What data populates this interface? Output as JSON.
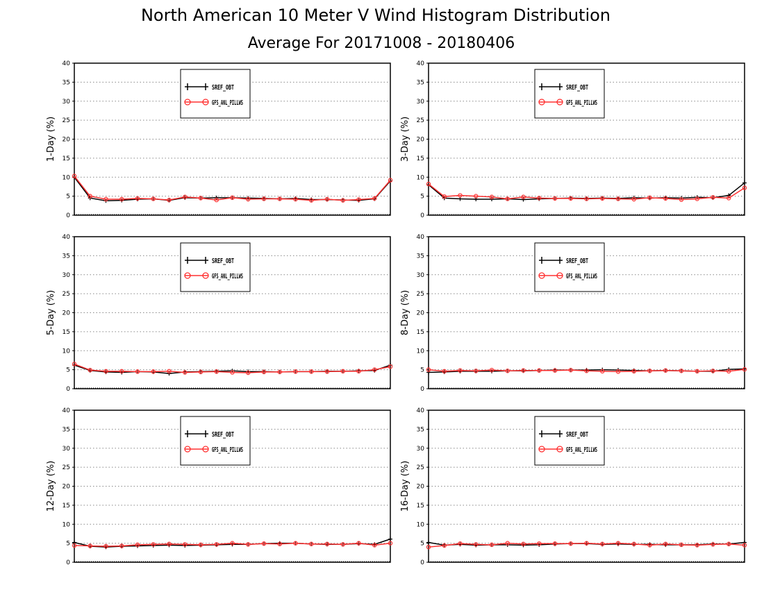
{
  "title": "North American 10 Meter V Wind Histogram Distribution",
  "subtitle": "Average For 20171008 - 20180406",
  "colors": {
    "series1": "#000000",
    "series2": "#ff3030",
    "grid": "#888888"
  },
  "legend_labels": [
    "SREF_OBT",
    "GFS_ANL_PILLWS"
  ],
  "chart_data": [
    {
      "type": "line",
      "ylabel": "1-Day (%)",
      "ylim": [
        0,
        40
      ],
      "yticks": [
        0,
        5,
        10,
        15,
        20,
        25,
        30,
        35,
        40
      ],
      "grid": true,
      "legend_position": "top-center",
      "x": [
        0,
        1,
        2,
        3,
        4,
        5,
        6,
        7,
        8,
        9,
        10,
        11,
        12,
        13,
        14,
        15,
        16,
        17,
        18,
        19,
        20
      ],
      "series": [
        {
          "values": [
            10.0,
            4.5,
            3.8,
            3.9,
            4.2,
            4.3,
            3.9,
            4.6,
            4.5,
            4.6,
            4.6,
            4.5,
            4.4,
            4.3,
            4.4,
            4.1,
            4.1,
            4.0,
            3.9,
            4.3,
            9.0
          ]
        },
        {
          "values": [
            10.3,
            5.0,
            4.2,
            4.2,
            4.4,
            4.3,
            4.0,
            4.8,
            4.5,
            4.0,
            4.6,
            4.2,
            4.3,
            4.3,
            4.2,
            3.9,
            4.2,
            3.9,
            4.1,
            4.4,
            9.2
          ]
        }
      ]
    },
    {
      "type": "line",
      "ylabel": "3-Day (%)",
      "ylim": [
        0,
        40
      ],
      "yticks": [
        0,
        5,
        10,
        15,
        20,
        25,
        30,
        35,
        40
      ],
      "grid": true,
      "legend_position": "top-center",
      "x": [
        0,
        1,
        2,
        3,
        4,
        5,
        6,
        7,
        8,
        9,
        10,
        11,
        12,
        13,
        14,
        15,
        16,
        17,
        18,
        19,
        20
      ],
      "series": [
        {
          "values": [
            8.0,
            4.5,
            4.3,
            4.2,
            4.2,
            4.3,
            4.1,
            4.3,
            4.4,
            4.5,
            4.4,
            4.5,
            4.4,
            4.6,
            4.5,
            4.6,
            4.5,
            4.7,
            4.6,
            5.2,
            8.5
          ]
        },
        {
          "values": [
            8.2,
            4.9,
            5.2,
            5.0,
            4.8,
            4.3,
            4.8,
            4.5,
            4.4,
            4.4,
            4.3,
            4.4,
            4.3,
            4.2,
            4.6,
            4.4,
            4.1,
            4.3,
            4.7,
            4.5,
            7.2
          ]
        }
      ]
    },
    {
      "type": "line",
      "ylabel": "5-Day (%)",
      "ylim": [
        0,
        40
      ],
      "yticks": [
        0,
        5,
        10,
        15,
        20,
        25,
        30,
        35,
        40
      ],
      "grid": true,
      "legend_position": "top-center",
      "x": [
        0,
        1,
        2,
        3,
        4,
        5,
        6,
        7,
        8,
        9,
        10,
        11,
        12,
        13,
        14,
        15,
        16,
        17,
        18,
        19,
        20
      ],
      "series": [
        {
          "values": [
            6.2,
            4.8,
            4.4,
            4.3,
            4.5,
            4.4,
            4.0,
            4.4,
            4.5,
            4.6,
            4.7,
            4.5,
            4.5,
            4.4,
            4.5,
            4.5,
            4.6,
            4.6,
            4.7,
            4.8,
            6.2
          ]
        },
        {
          "values": [
            6.5,
            4.9,
            4.6,
            4.6,
            4.5,
            4.5,
            4.6,
            4.3,
            4.4,
            4.5,
            4.3,
            4.2,
            4.4,
            4.4,
            4.5,
            4.5,
            4.5,
            4.6,
            4.6,
            5.0,
            5.8
          ]
        }
      ]
    },
    {
      "type": "line",
      "ylabel": "8-Day (%)",
      "ylim": [
        0,
        40
      ],
      "yticks": [
        0,
        5,
        10,
        15,
        20,
        25,
        30,
        35,
        40
      ],
      "grid": true,
      "legend_position": "top-center",
      "x": [
        0,
        1,
        2,
        3,
        4,
        5,
        6,
        7,
        8,
        9,
        10,
        11,
        12,
        13,
        14,
        15,
        16,
        17,
        18,
        19,
        20
      ],
      "series": [
        {
          "values": [
            4.3,
            4.4,
            4.6,
            4.6,
            4.6,
            4.7,
            4.7,
            4.8,
            4.9,
            4.9,
            4.9,
            5.0,
            4.9,
            4.8,
            4.7,
            4.8,
            4.7,
            4.6,
            4.6,
            5.1,
            5.2
          ]
        },
        {
          "values": [
            5.0,
            4.6,
            4.8,
            4.7,
            4.9,
            4.7,
            4.8,
            4.8,
            4.8,
            4.9,
            4.7,
            4.6,
            4.5,
            4.6,
            4.7,
            4.8,
            4.7,
            4.6,
            4.7,
            4.6,
            5.1
          ]
        }
      ]
    },
    {
      "type": "line",
      "ylabel": "12-Day (%)",
      "ylim": [
        0,
        40
      ],
      "yticks": [
        0,
        5,
        10,
        15,
        20,
        25,
        30,
        35,
        40
      ],
      "grid": true,
      "legend_position": "top-center",
      "x": [
        0,
        1,
        2,
        3,
        4,
        5,
        6,
        7,
        8,
        9,
        10,
        11,
        12,
        13,
        14,
        15,
        16,
        17,
        18,
        19,
        20
      ],
      "series": [
        {
          "values": [
            5.2,
            4.2,
            4.0,
            4.2,
            4.3,
            4.4,
            4.5,
            4.4,
            4.5,
            4.6,
            4.7,
            4.7,
            4.9,
            5.0,
            5.0,
            4.8,
            4.7,
            4.7,
            4.9,
            4.7,
            6.1
          ]
        },
        {
          "values": [
            4.4,
            4.3,
            4.2,
            4.3,
            4.6,
            4.7,
            4.8,
            4.7,
            4.6,
            4.7,
            5.0,
            4.7,
            4.9,
            4.8,
            5.0,
            4.8,
            4.8,
            4.7,
            5.0,
            4.5,
            5.0
          ]
        }
      ]
    },
    {
      "type": "line",
      "ylabel": "16-Day (%)",
      "ylim": [
        0,
        40
      ],
      "yticks": [
        0,
        5,
        10,
        15,
        20,
        25,
        30,
        35,
        40
      ],
      "grid": true,
      "legend_position": "top-center",
      "x": [
        0,
        1,
        2,
        3,
        4,
        5,
        6,
        7,
        8,
        9,
        10,
        11,
        12,
        13,
        14,
        15,
        16,
        17,
        18,
        19,
        20
      ],
      "series": [
        {
          "values": [
            5.2,
            4.5,
            4.7,
            4.5,
            4.6,
            4.6,
            4.5,
            4.6,
            4.8,
            4.9,
            4.9,
            4.7,
            4.8,
            4.7,
            4.7,
            4.6,
            4.6,
            4.6,
            4.8,
            4.8,
            5.2
          ]
        },
        {
          "values": [
            4.0,
            4.4,
            4.9,
            4.7,
            4.6,
            5.0,
            4.8,
            4.9,
            4.9,
            4.9,
            5.0,
            4.8,
            5.0,
            4.8,
            4.5,
            4.8,
            4.6,
            4.5,
            4.7,
            4.8,
            4.5
          ]
        }
      ]
    }
  ]
}
